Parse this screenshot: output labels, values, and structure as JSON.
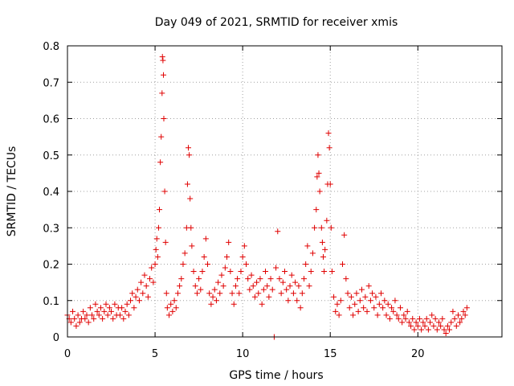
{
  "chart_data": {
    "type": "scatter",
    "title": "Day 049 of 2021, SRMTID for receiver xmis",
    "xlabel": "GPS time / hours",
    "ylabel": "SRMTID / TECUs",
    "xlim": [
      0,
      24.8
    ],
    "ylim": [
      0,
      0.8
    ],
    "x_ticks": [
      0,
      5,
      10,
      15,
      20
    ],
    "x_tick_labels": [
      "0",
      "5",
      "10",
      "15",
      "20"
    ],
    "y_ticks": [
      0,
      0.1,
      0.2,
      0.3,
      0.4,
      0.5,
      0.6,
      0.7,
      0.8
    ],
    "y_tick_labels": [
      "0",
      "0.1",
      "0.2",
      "0.3",
      "0.4",
      "0.5",
      "0.6",
      "0.7",
      "0.8"
    ],
    "grid": true,
    "marker": "+",
    "color": "#e00000",
    "series": [
      {
        "name": "SRMTID",
        "points": [
          [
            0.0,
            0.06
          ],
          [
            0.1,
            0.05
          ],
          [
            0.2,
            0.04
          ],
          [
            0.3,
            0.07
          ],
          [
            0.4,
            0.05
          ],
          [
            0.5,
            0.03
          ],
          [
            0.6,
            0.06
          ],
          [
            0.7,
            0.04
          ],
          [
            0.8,
            0.05
          ],
          [
            0.9,
            0.07
          ],
          [
            1.0,
            0.05
          ],
          [
            1.1,
            0.06
          ],
          [
            1.2,
            0.04
          ],
          [
            1.3,
            0.08
          ],
          [
            1.4,
            0.06
          ],
          [
            1.5,
            0.05
          ],
          [
            1.6,
            0.09
          ],
          [
            1.7,
            0.07
          ],
          [
            1.8,
            0.06
          ],
          [
            1.9,
            0.08
          ],
          [
            2.0,
            0.05
          ],
          [
            2.1,
            0.07
          ],
          [
            2.2,
            0.09
          ],
          [
            2.3,
            0.06
          ],
          [
            2.4,
            0.08
          ],
          [
            2.5,
            0.07
          ],
          [
            2.6,
            0.05
          ],
          [
            2.7,
            0.09
          ],
          [
            2.8,
            0.06
          ],
          [
            2.9,
            0.08
          ],
          [
            3.0,
            0.06
          ],
          [
            3.1,
            0.08
          ],
          [
            3.2,
            0.05
          ],
          [
            3.3,
            0.07
          ],
          [
            3.4,
            0.09
          ],
          [
            3.5,
            0.06
          ],
          [
            3.6,
            0.1
          ],
          [
            3.7,
            0.12
          ],
          [
            3.8,
            0.08
          ],
          [
            3.9,
            0.11
          ],
          [
            4.0,
            0.13
          ],
          [
            4.1,
            0.1
          ],
          [
            4.2,
            0.15
          ],
          [
            4.3,
            0.12
          ],
          [
            4.4,
            0.17
          ],
          [
            4.5,
            0.14
          ],
          [
            4.6,
            0.11
          ],
          [
            4.7,
            0.16
          ],
          [
            4.8,
            0.19
          ],
          [
            4.9,
            0.15
          ],
          [
            5.0,
            0.2
          ],
          [
            5.05,
            0.24
          ],
          [
            5.1,
            0.27
          ],
          [
            5.15,
            0.22
          ],
          [
            5.2,
            0.3
          ],
          [
            5.25,
            0.35
          ],
          [
            5.3,
            0.48
          ],
          [
            5.35,
            0.55
          ],
          [
            5.4,
            0.67
          ],
          [
            5.42,
            0.77
          ],
          [
            5.45,
            0.76
          ],
          [
            5.48,
            0.72
          ],
          [
            5.5,
            0.6
          ],
          [
            5.55,
            0.4
          ],
          [
            5.6,
            0.26
          ],
          [
            5.65,
            0.12
          ],
          [
            5.7,
            0.08
          ],
          [
            5.8,
            0.06
          ],
          [
            5.9,
            0.09
          ],
          [
            6.0,
            0.07
          ],
          [
            6.1,
            0.1
          ],
          [
            6.2,
            0.08
          ],
          [
            6.3,
            0.12
          ],
          [
            6.4,
            0.14
          ],
          [
            6.5,
            0.16
          ],
          [
            6.6,
            0.2
          ],
          [
            6.7,
            0.23
          ],
          [
            6.8,
            0.3
          ],
          [
            6.85,
            0.42
          ],
          [
            6.9,
            0.52
          ],
          [
            6.95,
            0.5
          ],
          [
            7.0,
            0.38
          ],
          [
            7.05,
            0.3
          ],
          [
            7.1,
            0.25
          ],
          [
            7.2,
            0.18
          ],
          [
            7.3,
            0.14
          ],
          [
            7.4,
            0.12
          ],
          [
            7.5,
            0.16
          ],
          [
            7.6,
            0.13
          ],
          [
            7.7,
            0.18
          ],
          [
            7.8,
            0.22
          ],
          [
            7.9,
            0.27
          ],
          [
            8.0,
            0.2
          ],
          [
            8.1,
            0.12
          ],
          [
            8.2,
            0.09
          ],
          [
            8.3,
            0.11
          ],
          [
            8.4,
            0.13
          ],
          [
            8.5,
            0.1
          ],
          [
            8.6,
            0.15
          ],
          [
            8.7,
            0.12
          ],
          [
            8.8,
            0.17
          ],
          [
            8.9,
            0.14
          ],
          [
            9.0,
            0.19
          ],
          [
            9.1,
            0.22
          ],
          [
            9.2,
            0.26
          ],
          [
            9.3,
            0.18
          ],
          [
            9.4,
            0.12
          ],
          [
            9.5,
            0.09
          ],
          [
            9.6,
            0.14
          ],
          [
            9.7,
            0.16
          ],
          [
            9.8,
            0.12
          ],
          [
            9.9,
            0.18
          ],
          [
            10.0,
            0.22
          ],
          [
            10.1,
            0.25
          ],
          [
            10.2,
            0.2
          ],
          [
            10.3,
            0.16
          ],
          [
            10.4,
            0.13
          ],
          [
            10.5,
            0.17
          ],
          [
            10.6,
            0.14
          ],
          [
            10.7,
            0.11
          ],
          [
            10.8,
            0.15
          ],
          [
            10.9,
            0.12
          ],
          [
            11.0,
            0.16
          ],
          [
            11.1,
            0.09
          ],
          [
            11.2,
            0.13
          ],
          [
            11.3,
            0.18
          ],
          [
            11.4,
            0.14
          ],
          [
            11.5,
            0.11
          ],
          [
            11.6,
            0.16
          ],
          [
            11.7,
            0.13
          ],
          [
            11.8,
            0.0
          ],
          [
            11.9,
            0.19
          ],
          [
            12.0,
            0.29
          ],
          [
            12.1,
            0.16
          ],
          [
            12.2,
            0.12
          ],
          [
            12.3,
            0.15
          ],
          [
            12.4,
            0.18
          ],
          [
            12.5,
            0.13
          ],
          [
            12.6,
            0.1
          ],
          [
            12.7,
            0.14
          ],
          [
            12.8,
            0.17
          ],
          [
            12.9,
            0.12
          ],
          [
            13.0,
            0.15
          ],
          [
            13.1,
            0.1
          ],
          [
            13.2,
            0.14
          ],
          [
            13.3,
            0.08
          ],
          [
            13.4,
            0.12
          ],
          [
            13.5,
            0.16
          ],
          [
            13.6,
            0.2
          ],
          [
            13.7,
            0.25
          ],
          [
            13.8,
            0.14
          ],
          [
            13.9,
            0.18
          ],
          [
            14.0,
            0.23
          ],
          [
            14.1,
            0.3
          ],
          [
            14.2,
            0.35
          ],
          [
            14.25,
            0.44
          ],
          [
            14.3,
            0.5
          ],
          [
            14.35,
            0.45
          ],
          [
            14.4,
            0.4
          ],
          [
            14.5,
            0.3
          ],
          [
            14.55,
            0.26
          ],
          [
            14.6,
            0.22
          ],
          [
            14.65,
            0.18
          ],
          [
            14.7,
            0.24
          ],
          [
            14.8,
            0.32
          ],
          [
            14.85,
            0.42
          ],
          [
            14.9,
            0.56
          ],
          [
            14.95,
            0.52
          ],
          [
            15.0,
            0.42
          ],
          [
            15.05,
            0.3
          ],
          [
            15.1,
            0.18
          ],
          [
            15.2,
            0.11
          ],
          [
            15.3,
            0.07
          ],
          [
            15.4,
            0.09
          ],
          [
            15.5,
            0.06
          ],
          [
            15.6,
            0.1
          ],
          [
            15.7,
            0.2
          ],
          [
            15.8,
            0.28
          ],
          [
            15.9,
            0.16
          ],
          [
            16.0,
            0.12
          ],
          [
            16.1,
            0.08
          ],
          [
            16.2,
            0.11
          ],
          [
            16.3,
            0.06
          ],
          [
            16.4,
            0.09
          ],
          [
            16.5,
            0.12
          ],
          [
            16.6,
            0.07
          ],
          [
            16.7,
            0.1
          ],
          [
            16.8,
            0.13
          ],
          [
            16.9,
            0.08
          ],
          [
            17.0,
            0.11
          ],
          [
            17.1,
            0.07
          ],
          [
            17.2,
            0.14
          ],
          [
            17.3,
            0.1
          ],
          [
            17.4,
            0.12
          ],
          [
            17.5,
            0.08
          ],
          [
            17.6,
            0.11
          ],
          [
            17.7,
            0.06
          ],
          [
            17.8,
            0.09
          ],
          [
            17.9,
            0.12
          ],
          [
            18.0,
            0.08
          ],
          [
            18.1,
            0.1
          ],
          [
            18.2,
            0.06
          ],
          [
            18.3,
            0.09
          ],
          [
            18.4,
            0.05
          ],
          [
            18.5,
            0.08
          ],
          [
            18.6,
            0.07
          ],
          [
            18.7,
            0.1
          ],
          [
            18.8,
            0.06
          ],
          [
            18.9,
            0.05
          ],
          [
            19.0,
            0.08
          ],
          [
            19.1,
            0.04
          ],
          [
            19.2,
            0.06
          ],
          [
            19.3,
            0.05
          ],
          [
            19.4,
            0.07
          ],
          [
            19.5,
            0.04
          ],
          [
            19.6,
            0.03
          ],
          [
            19.7,
            0.05
          ],
          [
            19.8,
            0.02
          ],
          [
            19.9,
            0.04
          ],
          [
            20.0,
            0.03
          ],
          [
            20.1,
            0.05
          ],
          [
            20.2,
            0.02
          ],
          [
            20.3,
            0.04
          ],
          [
            20.4,
            0.03
          ],
          [
            20.5,
            0.05
          ],
          [
            20.6,
            0.02
          ],
          [
            20.7,
            0.04
          ],
          [
            20.8,
            0.06
          ],
          [
            20.9,
            0.03
          ],
          [
            21.0,
            0.05
          ],
          [
            21.1,
            0.02
          ],
          [
            21.2,
            0.04
          ],
          [
            21.3,
            0.03
          ],
          [
            21.4,
            0.05
          ],
          [
            21.5,
            0.02
          ],
          [
            21.6,
            0.01
          ],
          [
            21.7,
            0.03
          ],
          [
            21.8,
            0.02
          ],
          [
            21.9,
            0.04
          ],
          [
            22.0,
            0.07
          ],
          [
            22.1,
            0.05
          ],
          [
            22.2,
            0.03
          ],
          [
            22.3,
            0.06
          ],
          [
            22.4,
            0.04
          ],
          [
            22.5,
            0.05
          ],
          [
            22.6,
            0.07
          ],
          [
            22.7,
            0.06
          ],
          [
            22.8,
            0.08
          ]
        ]
      }
    ]
  }
}
